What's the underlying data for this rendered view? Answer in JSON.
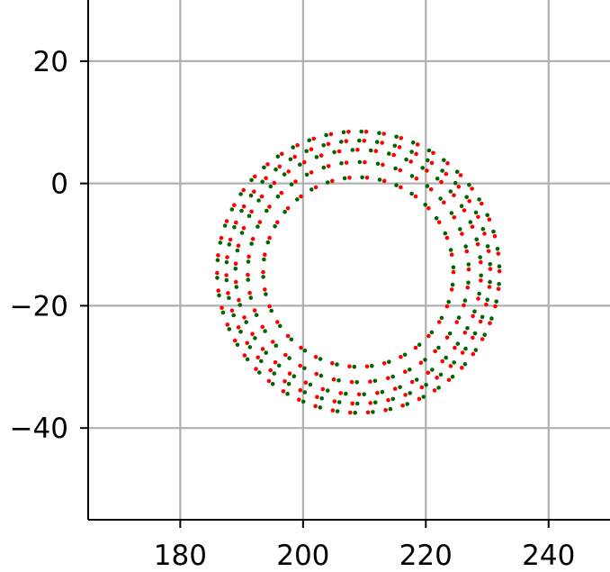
{
  "chart_data": {
    "type": "scatter",
    "title": "",
    "xlabel": "",
    "ylabel": "",
    "xlim": [
      165,
      250
    ],
    "ylim": [
      -55,
      30
    ],
    "grid": true,
    "x_ticks": [
      180,
      200,
      220,
      240
    ],
    "x_tick_labels": [
      "180",
      "200",
      "220",
      "240"
    ],
    "y_ticks": [
      20,
      0,
      -20,
      -40
    ],
    "y_tick_labels": [
      "20",
      "0",
      "−20",
      "−40"
    ],
    "colors": {
      "grid": "#b0b0b0",
      "axis": "#000000",
      "series_a": "#ff0000",
      "series_b": "#006400"
    },
    "series": [
      {
        "color": "#ff0000",
        "pattern": "annular ring of dots, 5 concentric rings",
        "center": [
          209,
          -14.5
        ],
        "radii": [
          15.5,
          18.0,
          20.0,
          21.5,
          23.0
        ],
        "points_per_ring": [
          34,
          38,
          42,
          46,
          50
        ]
      },
      {
        "color": "#006400",
        "pattern": "annular ring of dots, 5 concentric rings",
        "center": [
          209,
          -14.5
        ],
        "radii": [
          15.5,
          18.0,
          20.0,
          21.5,
          23.0
        ],
        "points_per_ring": [
          34,
          38,
          42,
          46,
          50
        ]
      }
    ]
  }
}
